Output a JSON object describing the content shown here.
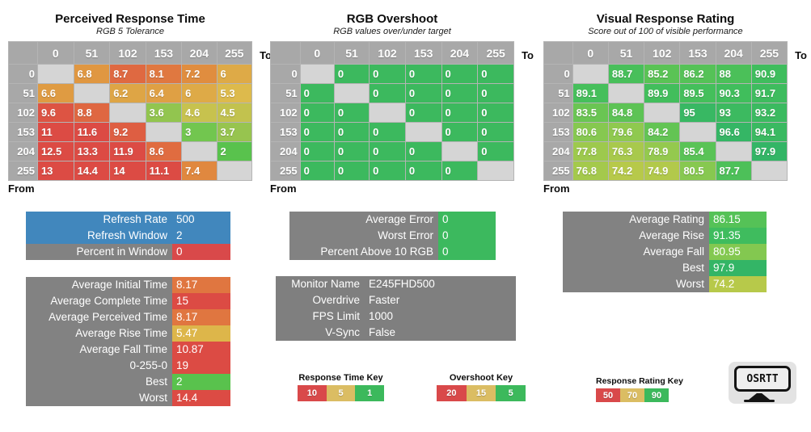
{
  "axis": {
    "to_label": "To",
    "from_label": "From"
  },
  "levels": [
    "0",
    "51",
    "102",
    "153",
    "204",
    "255"
  ],
  "tables": [
    {
      "id": "perceived_response_time",
      "title": "Perceived Response Time",
      "subtitle": "RGB 5 Tolerance",
      "scale": "time",
      "rows": [
        [
          null,
          6.8,
          8.7,
          8.1,
          7.2,
          6
        ],
        [
          6.6,
          null,
          6.2,
          6.4,
          6,
          5.3
        ],
        [
          9.6,
          8.8,
          null,
          3.6,
          4.6,
          4.5
        ],
        [
          11,
          11.6,
          9.2,
          null,
          3,
          3.7
        ],
        [
          12.5,
          13.3,
          11.9,
          8.6,
          null,
          2
        ],
        [
          13,
          14.4,
          14,
          11.1,
          7.4,
          null
        ]
      ]
    },
    {
      "id": "rgb_overshoot",
      "title": "RGB Overshoot",
      "subtitle": "RGB values over/under target",
      "scale": "overshoot",
      "rows": [
        [
          null,
          0,
          0,
          0,
          0,
          0
        ],
        [
          0,
          null,
          0,
          0,
          0,
          0
        ],
        [
          0,
          0,
          null,
          0,
          0,
          0
        ],
        [
          0,
          0,
          0,
          null,
          0,
          0
        ],
        [
          0,
          0,
          0,
          0,
          null,
          0
        ],
        [
          0,
          0,
          0,
          0,
          0,
          null
        ]
      ]
    },
    {
      "id": "visual_response_rating",
      "title": "Visual Response Rating",
      "subtitle": "Score out of 100 of visible performance",
      "scale": "rating",
      "rows": [
        [
          null,
          88.7,
          85.2,
          86.2,
          88,
          90.9
        ],
        [
          89.1,
          null,
          89.9,
          89.5,
          90.3,
          91.7
        ],
        [
          83.5,
          84.8,
          null,
          95,
          93,
          93.2
        ],
        [
          80.6,
          79.6,
          84.2,
          null,
          96.6,
          94.1
        ],
        [
          77.8,
          76.3,
          78.9,
          85.4,
          null,
          97.9
        ],
        [
          76.8,
          74.2,
          74.9,
          80.5,
          87.7,
          null
        ]
      ]
    }
  ],
  "panels": {
    "refresh": {
      "rows": [
        {
          "label": "Refresh Rate",
          "value": "500",
          "row_style": "blue"
        },
        {
          "label": "Refresh Window",
          "value": "2",
          "row_style": "blue"
        },
        {
          "label": "Percent in Window",
          "value": "0",
          "value_style": "red"
        }
      ]
    },
    "time_stats": {
      "value_scale": "time",
      "rows": [
        {
          "label": "Average Initial Time",
          "value": 8.17
        },
        {
          "label": "Average Complete Time",
          "value": 15
        },
        {
          "label": "Average Perceived Time",
          "value": 8.17
        },
        {
          "label": "Average Rise Time",
          "value": 5.47
        },
        {
          "label": "Average Fall Time",
          "value": 10.87
        },
        {
          "label": "0-255-0",
          "value": 19
        },
        {
          "label": "Best",
          "value": 2
        },
        {
          "label": "Worst",
          "value": 14.4
        }
      ]
    },
    "error_stats": {
      "value_scale": "overshoot",
      "rows": [
        {
          "label": "Average Error",
          "value": 0
        },
        {
          "label": "Worst Error",
          "value": 0
        },
        {
          "label": "Percent Above 10 RGB",
          "value": 0
        }
      ]
    },
    "monitor": {
      "rows": [
        {
          "label": "Monitor Name",
          "value": "E245FHD500"
        },
        {
          "label": "Overdrive",
          "value": "Faster"
        },
        {
          "label": "FPS Limit",
          "value": "1000"
        },
        {
          "label": "V-Sync",
          "value": "False"
        }
      ]
    },
    "rating_stats": {
      "value_scale": "rating",
      "rows": [
        {
          "label": "Average Rating",
          "value": 86.15
        },
        {
          "label": "Average Rise",
          "value": 91.35
        },
        {
          "label": "Average Fall",
          "value": 80.95
        },
        {
          "label": "Best",
          "value": 97.9
        },
        {
          "label": "Worst",
          "value": 74.2
        }
      ]
    }
  },
  "keys": [
    {
      "id": "time",
      "title": "Response Time Key",
      "entries": [
        {
          "label": "10",
          "color": "#D9494A"
        },
        {
          "label": "5",
          "color": "#DBBD63"
        },
        {
          "label": "1",
          "color": "#3CB95C"
        }
      ]
    },
    {
      "id": "overshoot",
      "title": "Overshoot Key",
      "entries": [
        {
          "label": "20",
          "color": "#D9494A"
        },
        {
          "label": "15",
          "color": "#DBBD63"
        },
        {
          "label": "5",
          "color": "#3CB95C"
        }
      ]
    },
    {
      "id": "rating",
      "title": "Response Rating Key",
      "entries": [
        {
          "label": "50",
          "color": "#D9494A"
        },
        {
          "label": "70",
          "color": "#DBBD63"
        },
        {
          "label": "90",
          "color": "#3CB95C"
        }
      ]
    }
  ],
  "logo": {
    "text": "OSRTT"
  },
  "colors": {
    "blue_row": "#4187BD",
    "red": "#D9494A",
    "green": "#3CB95E",
    "label_gray": "#828282",
    "monitor_gray": "#7F7F7F",
    "header_gray": "#A8A8A8",
    "blank_cell": "#D5D5D5",
    "scales": {
      "time": [
        [
          1,
          "#3FBE4B"
        ],
        [
          3,
          "#72C64F"
        ],
        [
          5,
          "#DCC14E"
        ],
        [
          7,
          "#E0923F"
        ],
        [
          8.5,
          "#E06E40"
        ],
        [
          10,
          "#DC4B44"
        ]
      ],
      "overshoot": [
        [
          0,
          "#3CB95E"
        ],
        [
          10,
          "#3CB95E"
        ],
        [
          15,
          "#DCC163"
        ],
        [
          20,
          "#D9494A"
        ]
      ],
      "rating": [
        [
          50,
          "#D9494A"
        ],
        [
          70,
          "#DCC163"
        ],
        [
          74,
          "#B9C94A"
        ],
        [
          80,
          "#8CC94F"
        ],
        [
          85,
          "#5BC355"
        ],
        [
          90,
          "#41BE5C"
        ],
        [
          100,
          "#2FB269"
        ]
      ]
    }
  }
}
